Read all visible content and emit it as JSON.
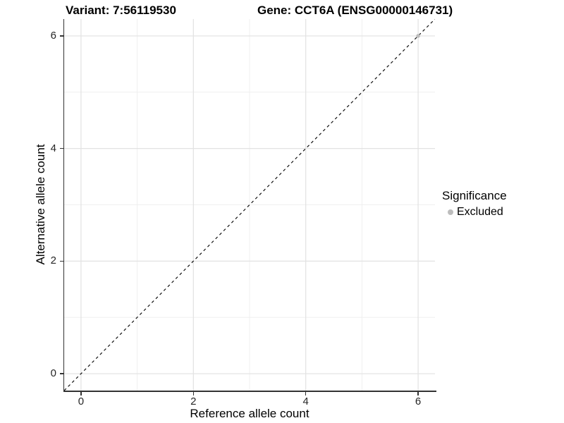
{
  "header": {
    "variant_title": "Variant: 7:56119530",
    "gene_title": "Gene: CCT6A (ENSG00000146731)"
  },
  "chart_data": {
    "type": "scatter",
    "title": "Variant: 7:56119530 / Gene: CCT6A (ENSG00000146731)",
    "xlabel": "Reference allele count",
    "ylabel": "Alternative allele count",
    "xlim": [
      -0.3,
      6.3
    ],
    "ylim": [
      -0.3,
      6.3
    ],
    "x_ticks": [
      0,
      2,
      4,
      6
    ],
    "y_ticks": [
      0,
      2,
      4,
      6
    ],
    "x_minor_ticks": [
      1,
      3,
      5
    ],
    "y_minor_ticks": [
      1,
      3,
      5
    ],
    "grid": "on",
    "legend": {
      "title": "Significance",
      "position": "right",
      "entries": [
        {
          "label": "Excluded",
          "color": "#bdbdbd"
        }
      ]
    },
    "series": [
      {
        "name": "Excluded",
        "color": "#bdbdbd",
        "points": [
          [
            6,
            6
          ]
        ]
      }
    ],
    "reference_line": {
      "kind": "identity",
      "style": "dashed",
      "color": "#111111",
      "from": [
        -0.3,
        -0.3
      ],
      "to": [
        6.3,
        6.3
      ]
    },
    "colors": {
      "background": "#ffffff",
      "grid_major": "#e2e2e2",
      "grid_minor": "#efefef",
      "axis_line": "#333333",
      "tick_text": "#262626",
      "point": "#bdbdbd"
    }
  }
}
